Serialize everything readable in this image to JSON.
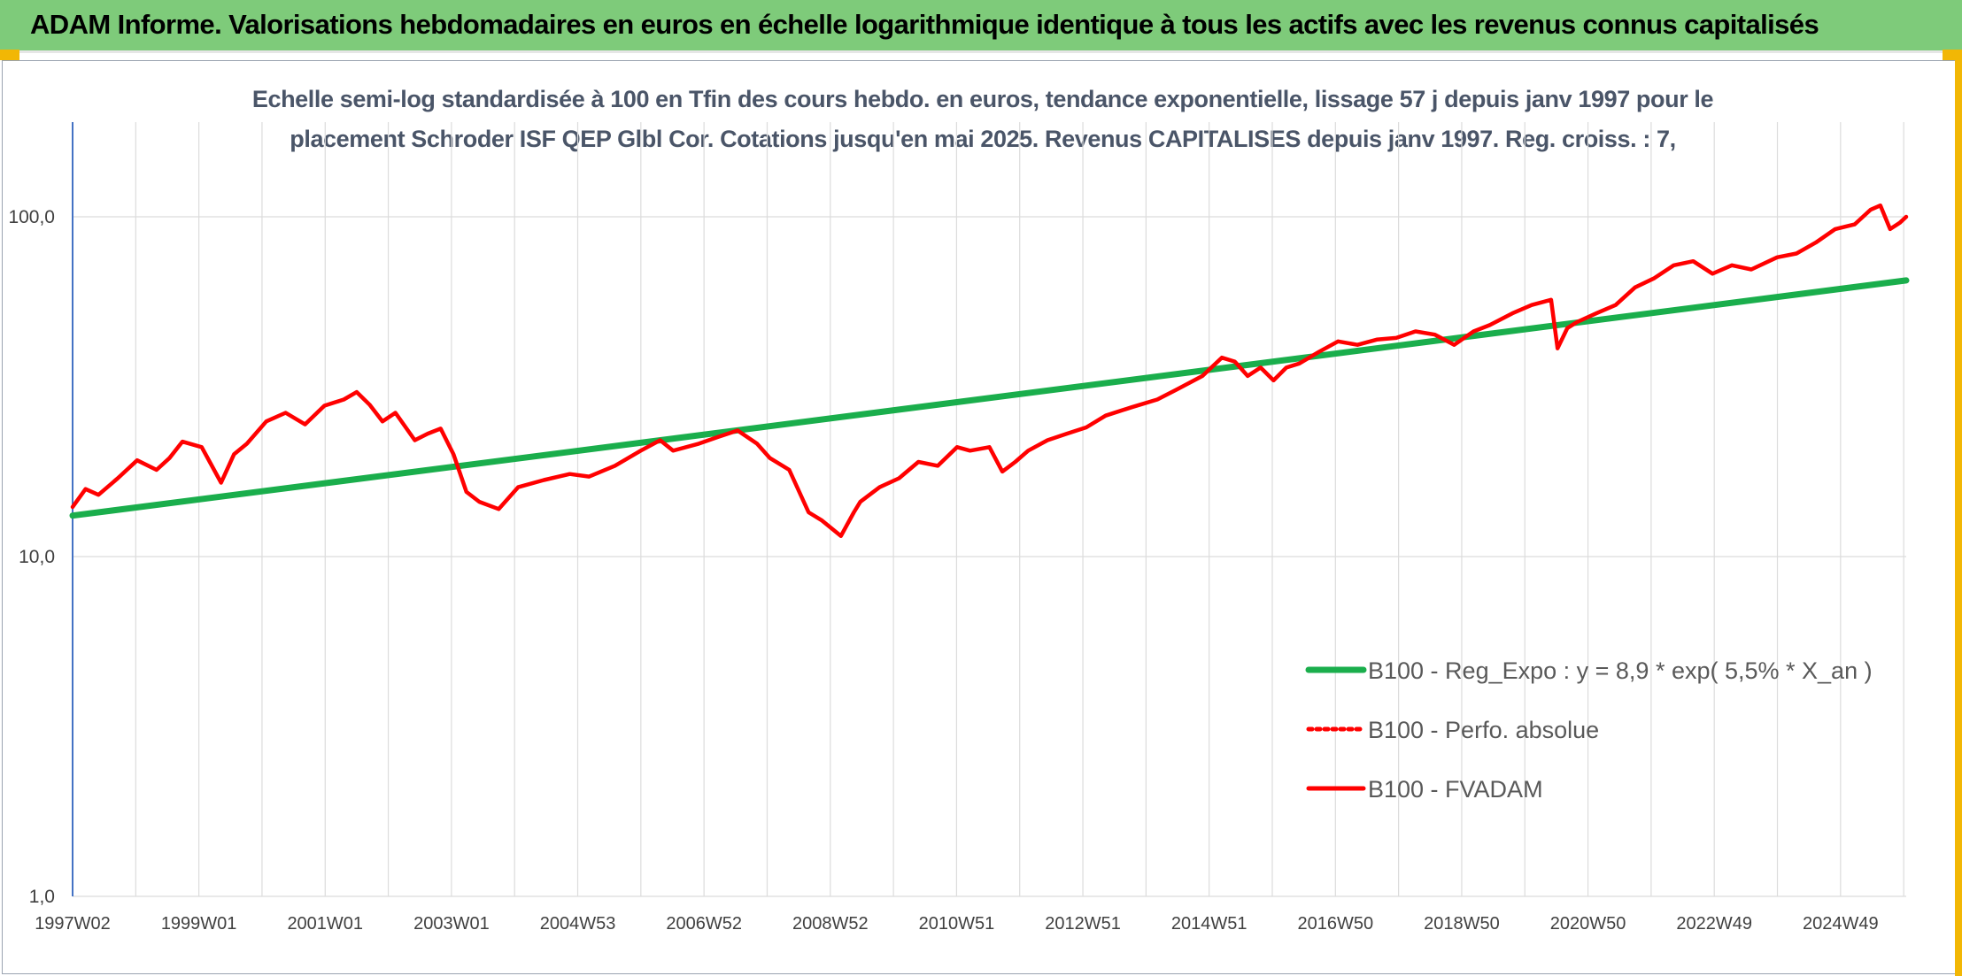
{
  "header": {
    "title": "ADAM Informe. Valorisations hebdomadaires en euros en échelle logarithmique identique à tous les actifs avec les revenus connus capitalisés"
  },
  "chart_data": {
    "type": "line",
    "title_line1": "Echelle semi-log standardisée à 100 en Tfin des cours hebdo. en euros, tendance exponentielle, lissage 57 j depuis janv 1997 pour le",
    "title_line2": "placement Schroder ISF QEP Glbl Cor. Cotations jusqu'en mai 2025. Revenus CAPITALISES depuis janv 1997. Reg. croiss. : 7,",
    "y_scale": "log",
    "ylim": [
      1,
      190
    ],
    "y_ticks": [
      "1,0",
      "10,0",
      "100,0"
    ],
    "x_ticks": [
      "1997W02",
      "1999W01",
      "2001W01",
      "2003W01",
      "2004W53",
      "2006W52",
      "2008W52",
      "2010W51",
      "2012W51",
      "2014W51",
      "2016W50",
      "2018W50",
      "2020W50",
      "2022W49",
      "2024W49"
    ],
    "xlim": [
      1997.0,
      2025.4
    ],
    "grid": "vertical and horizontal",
    "legend_position": "right",
    "series": [
      {
        "name": "B100 - Reg_Expo : y = 8,9 * exp( 5,5% *  X_an )",
        "color": "#1aae4c",
        "style": "solid",
        "x": [
          1997.0,
          2025.4
        ],
        "y": [
          13.2,
          65.0
        ]
      },
      {
        "name": "B100 - Perfo. absolue",
        "color": "#ff0000",
        "style": "dotted",
        "x": [],
        "y": []
      },
      {
        "name": "B100 - FVADAM",
        "color": "#ff0000",
        "style": "solid",
        "x": [
          1997.0,
          1997.2,
          1997.4,
          1997.7,
          1998.0,
          1998.3,
          1998.5,
          1998.7,
          1999.0,
          1999.3,
          1999.5,
          1999.7,
          2000.0,
          2000.3,
          2000.6,
          2000.9,
          2001.2,
          2001.4,
          2001.6,
          2001.8,
          2002.0,
          2002.3,
          2002.5,
          2002.7,
          2002.9,
          2003.1,
          2003.3,
          2003.6,
          2003.9,
          2004.3,
          2004.7,
          2005.0,
          2005.4,
          2005.8,
          2006.1,
          2006.3,
          2006.7,
          2007.0,
          2007.3,
          2007.6,
          2007.8,
          2008.1,
          2008.4,
          2008.6,
          2008.9,
          2009.1,
          2009.2,
          2009.5,
          2009.8,
          2010.1,
          2010.4,
          2010.7,
          2010.9,
          2011.2,
          2011.4,
          2011.6,
          2011.8,
          2012.1,
          2012.4,
          2012.7,
          2013.0,
          2013.4,
          2013.8,
          2014.1,
          2014.5,
          2014.8,
          2015.0,
          2015.2,
          2015.4,
          2015.6,
          2015.8,
          2016.0,
          2016.3,
          2016.6,
          2016.9,
          2017.2,
          2017.5,
          2017.8,
          2018.1,
          2018.4,
          2018.7,
          2018.95,
          2019.3,
          2019.6,
          2019.9,
          2020.0,
          2020.15,
          2020.3,
          2020.6,
          2020.9,
          2021.2,
          2021.5,
          2021.8,
          2022.1,
          2022.4,
          2022.7,
          2023.0,
          2023.4,
          2023.7,
          2024.0,
          2024.3,
          2024.6,
          2024.85,
          2025.0,
          2025.15,
          2025.3,
          2025.4
        ],
        "y": [
          14.0,
          15.8,
          15.2,
          17.0,
          19.2,
          18.0,
          19.5,
          21.8,
          21.0,
          16.5,
          20.0,
          21.5,
          25.0,
          26.5,
          24.5,
          27.8,
          29.0,
          30.5,
          28.0,
          25.0,
          26.5,
          22.0,
          23.0,
          23.8,
          20.0,
          15.5,
          14.5,
          13.8,
          16.0,
          16.8,
          17.5,
          17.2,
          18.5,
          20.5,
          22.0,
          20.5,
          21.5,
          22.5,
          23.5,
          21.5,
          19.5,
          18.0,
          13.5,
          12.8,
          11.5,
          13.5,
          14.5,
          16.0,
          17.0,
          19.0,
          18.5,
          21.0,
          20.5,
          21.0,
          17.8,
          19.0,
          20.5,
          22.0,
          23.0,
          24.0,
          26.0,
          27.5,
          29.0,
          31.0,
          34.0,
          38.5,
          37.5,
          34.0,
          36.0,
          33.0,
          36.0,
          37.0,
          40.0,
          43.0,
          42.0,
          43.5,
          44.0,
          46.0,
          45.0,
          42.0,
          46.0,
          48.0,
          52.0,
          55.0,
          57.0,
          41.0,
          47.0,
          49.0,
          52.0,
          55.0,
          62.0,
          66.0,
          72.0,
          74.0,
          68.0,
          72.0,
          70.0,
          76.0,
          78.0,
          84.0,
          92.0,
          95.0,
          105.0,
          108.0,
          92.0,
          96.0,
          100.0
        ]
      }
    ]
  }
}
